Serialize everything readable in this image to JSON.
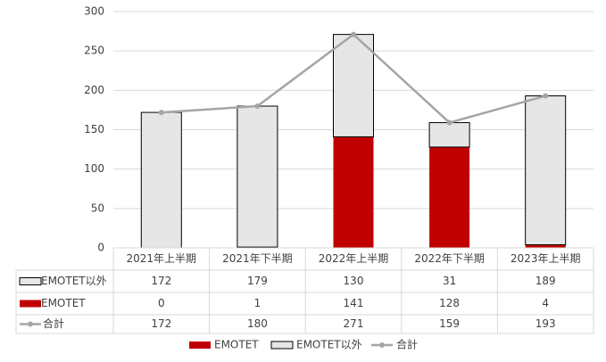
{
  "chart_data": {
    "type": "bar",
    "stacked": true,
    "categories": [
      "2021年上半期",
      "2021年下半期",
      "2022年上半期",
      "2022年下半期",
      "2023年上半期"
    ],
    "series": [
      {
        "name": "EMOTET",
        "color": "#c00000",
        "values": [
          0,
          1,
          141,
          128,
          4
        ]
      },
      {
        "name": "EMOTET以外",
        "color": "#e7e6e6",
        "values": [
          172,
          179,
          130,
          31,
          189
        ]
      },
      {
        "name": "合計",
        "type": "line",
        "color": "#a5a5a5",
        "values": [
          172,
          180,
          271,
          159,
          193
        ]
      }
    ],
    "ylim": [
      0,
      300
    ],
    "yticks": [
      0,
      50,
      100,
      150,
      200,
      250,
      300
    ],
    "grid": true,
    "legend": "bottom",
    "data_table": true
  }
}
